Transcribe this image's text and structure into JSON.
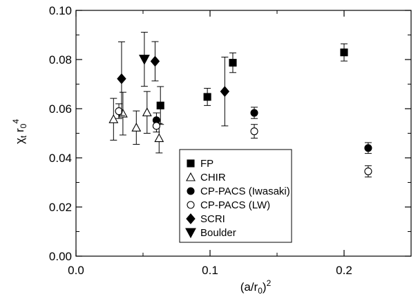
{
  "chart_data": {
    "type": "scatter",
    "xlabel": "(a/r0)^2",
    "ylabel": "χt r0^4",
    "xlim": [
      0.0,
      0.25
    ],
    "ylim": [
      0.0,
      0.1
    ],
    "x_ticks": [
      "0.0",
      "0.1",
      "0.2"
    ],
    "x_tick_values": [
      0.0,
      0.1,
      0.2
    ],
    "y_ticks": [
      "0.00",
      "0.02",
      "0.04",
      "0.06",
      "0.08",
      "0.10"
    ],
    "y_tick_values": [
      0.0,
      0.02,
      0.04,
      0.06,
      0.08,
      0.1
    ],
    "grid": false,
    "legend_position": "lower-right",
    "series": [
      {
        "name": "FP",
        "marker": "square-filled",
        "points": [
          {
            "x": 0.063,
            "y": 0.0613,
            "err": 0.0077
          },
          {
            "x": 0.098,
            "y": 0.0648,
            "err": 0.0035
          },
          {
            "x": 0.117,
            "y": 0.0787,
            "err": 0.004
          },
          {
            "x": 0.2,
            "y": 0.0829,
            "err": 0.0035
          }
        ]
      },
      {
        "name": "CHIR",
        "marker": "triangle-up-open",
        "points": [
          {
            "x": 0.028,
            "y": 0.0557,
            "err": 0.0085
          },
          {
            "x": 0.035,
            "y": 0.058,
            "err": 0.0087
          },
          {
            "x": 0.045,
            "y": 0.0523,
            "err": 0.0068
          },
          {
            "x": 0.053,
            "y": 0.0585,
            "err": 0.0085
          },
          {
            "x": 0.062,
            "y": 0.048,
            "err": 0.006
          }
        ]
      },
      {
        "name": "CP-PACS (Iwasaki)",
        "marker": "circle-filled",
        "points": [
          {
            "x": 0.06,
            "y": 0.0553,
            "err": 0.003
          },
          {
            "x": 0.133,
            "y": 0.0583,
            "err": 0.0023
          },
          {
            "x": 0.218,
            "y": 0.044,
            "err": 0.0022
          }
        ]
      },
      {
        "name": "CP-PACS (LW)",
        "marker": "circle-open",
        "points": [
          {
            "x": 0.032,
            "y": 0.059,
            "err": 0.003
          },
          {
            "x": 0.06,
            "y": 0.053,
            "err": 0.0025
          },
          {
            "x": 0.133,
            "y": 0.0508,
            "err": 0.0028
          },
          {
            "x": 0.218,
            "y": 0.0345,
            "err": 0.0023
          }
        ]
      },
      {
        "name": "SCRI",
        "marker": "diamond-filled",
        "points": [
          {
            "x": 0.034,
            "y": 0.0722,
            "err": 0.015
          },
          {
            "x": 0.059,
            "y": 0.0793,
            "err": 0.008
          },
          {
            "x": 0.111,
            "y": 0.067,
            "err": 0.014
          }
        ]
      },
      {
        "name": "Boulder",
        "marker": "triangle-down-filled",
        "points": [
          {
            "x": 0.051,
            "y": 0.0801,
            "err": 0.011
          }
        ]
      }
    ]
  }
}
